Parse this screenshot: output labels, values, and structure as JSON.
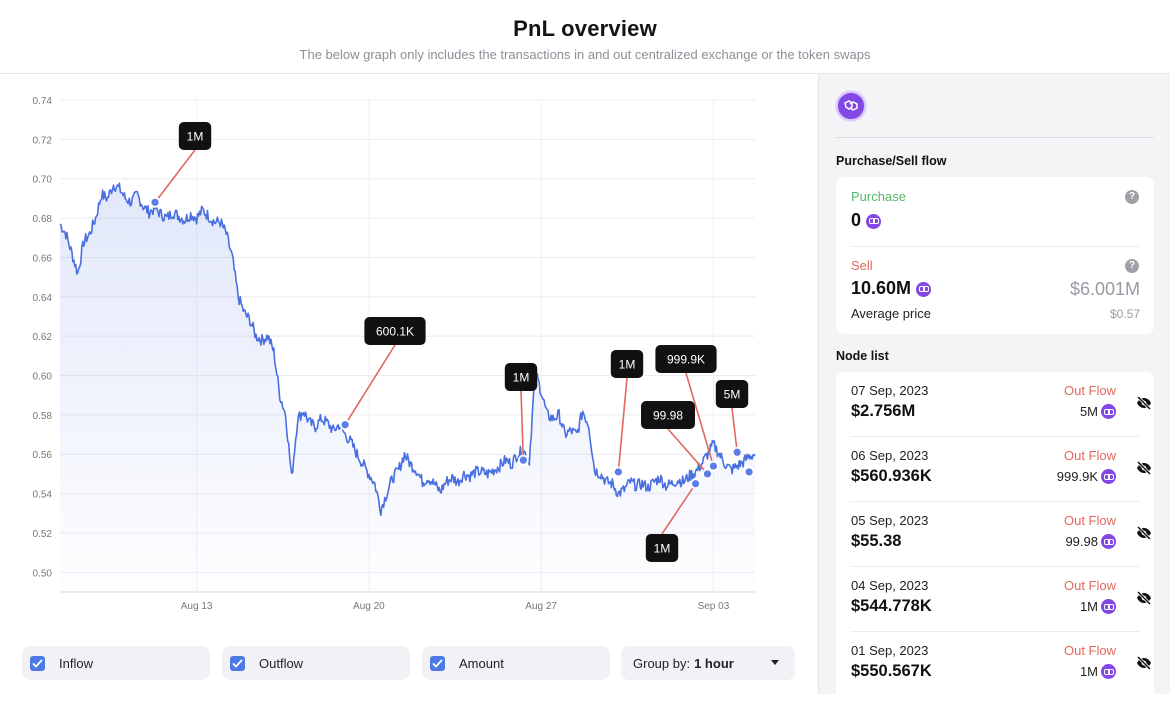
{
  "header": {
    "title": "PnL overview",
    "subtitle": "The below graph only includes the transactions in and out centralized exchange or the token swaps"
  },
  "chart_data": {
    "type": "line",
    "ylim": [
      0.49,
      0.74
    ],
    "yticks": [
      "0.74",
      "0.72",
      "0.70",
      "0.68",
      "0.66",
      "0.64",
      "0.62",
      "0.60",
      "0.58",
      "0.56",
      "0.54",
      "0.52",
      "0.50"
    ],
    "xticks": [
      "Aug 13",
      "Aug 20",
      "Aug 27",
      "Sep 03"
    ],
    "grid": true,
    "series_color": "#4a6fe0",
    "fill": "area-gradient",
    "price_series": [
      0.677,
      0.672,
      0.662,
      0.652,
      0.668,
      0.672,
      0.68,
      0.692,
      0.69,
      0.697,
      0.695,
      0.69,
      0.688,
      0.692,
      0.686,
      0.683,
      0.685,
      0.682,
      0.68,
      0.683,
      0.681,
      0.679,
      0.682,
      0.68,
      0.684,
      0.681,
      0.678,
      0.678,
      0.672,
      0.66,
      0.64,
      0.632,
      0.628,
      0.62,
      0.618,
      0.62,
      0.612,
      0.59,
      0.58,
      0.548,
      0.578,
      0.582,
      0.576,
      0.574,
      0.578,
      0.576,
      0.572,
      0.575,
      0.57,
      0.566,
      0.56,
      0.555,
      0.55,
      0.545,
      0.532,
      0.54,
      0.548,
      0.552,
      0.56,
      0.555,
      0.552,
      0.546,
      0.548,
      0.545,
      0.541,
      0.546,
      0.548,
      0.546,
      0.55,
      0.549,
      0.551,
      0.551,
      0.55,
      0.552,
      0.554,
      0.557,
      0.555,
      0.56,
      0.562,
      0.557,
      0.602,
      0.592,
      0.58,
      0.578,
      0.58,
      0.57,
      0.572,
      0.57,
      0.582,
      0.575,
      0.552,
      0.55,
      0.546,
      0.545,
      0.54,
      0.542,
      0.546,
      0.544,
      0.545,
      0.543,
      0.546,
      0.548,
      0.544,
      0.545,
      0.547,
      0.546,
      0.549,
      0.551,
      0.555,
      0.56,
      0.565,
      0.56,
      0.555,
      0.552,
      0.554,
      0.556,
      0.559,
      0.56
    ],
    "markers": [
      {
        "label": "1M",
        "x_index": 16,
        "y": 0.688
      },
      {
        "label": "600.1K",
        "x_index": 48,
        "y": 0.575
      },
      {
        "label": "1M",
        "x_index": 78,
        "y": 0.557
      },
      {
        "label": "1M",
        "x_index": 94,
        "y": 0.551
      },
      {
        "label": "1M",
        "x_index": 107,
        "y": 0.545
      },
      {
        "label": "99.98",
        "x_index": 109,
        "y": 0.55
      },
      {
        "label": "999.9K",
        "x_index": 110,
        "y": 0.554
      },
      {
        "label": "5M",
        "x_index": 114,
        "y": 0.561
      },
      {
        "label": "",
        "x_index": 116,
        "y": 0.551
      }
    ]
  },
  "controls": {
    "inflow": "Inflow",
    "outflow": "Outflow",
    "amount": "Amount",
    "group_by_label": "Group by:",
    "group_by_value": "1 hour"
  },
  "sidebar": {
    "flow_title": "Purchase/Sell flow",
    "purchase_label": "Purchase",
    "purchase_value": "0",
    "sell_label": "Sell",
    "sell_value": "10.60M",
    "sell_usd": "$6.001M",
    "avg_price_label": "Average price",
    "avg_price_value": "$0.57",
    "node_title": "Node list",
    "nodes": [
      {
        "date": "07 Sep, 2023",
        "usd": "$2.756M",
        "flow": "Out Flow",
        "amount": "5M"
      },
      {
        "date": "06 Sep, 2023",
        "usd": "$560.936K",
        "flow": "Out Flow",
        "amount": "999.9K"
      },
      {
        "date": "05 Sep, 2023",
        "usd": "$55.38",
        "flow": "Out Flow",
        "amount": "99.98"
      },
      {
        "date": "04 Sep, 2023",
        "usd": "$544.778K",
        "flow": "Out Flow",
        "amount": "1M"
      },
      {
        "date": "01 Sep, 2023",
        "usd": "$550.567K",
        "flow": "Out Flow",
        "amount": "1M"
      }
    ]
  }
}
